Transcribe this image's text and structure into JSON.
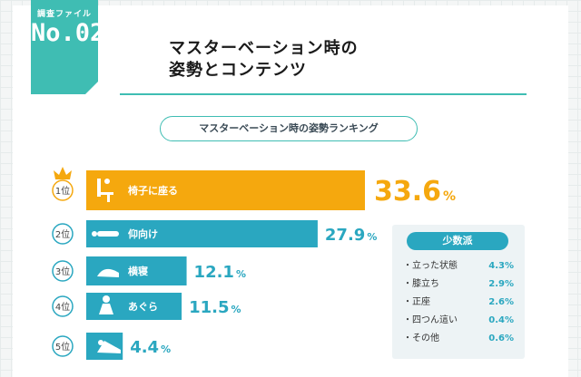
{
  "file": {
    "caption": "調査ファイル",
    "number": "No.02"
  },
  "headline": {
    "line1": "マスターベーション時の",
    "line2": "姿勢とコンテンツ"
  },
  "colors": {
    "teal": "#3fbdb3",
    "bar_top": "#f5a80e",
    "bar": "#2aa7c0"
  },
  "chart_data": {
    "type": "bar",
    "orientation": "horizontal",
    "title": "マスターベーション時の姿勢ランキング",
    "rank_suffix": "位",
    "value_unit": "%",
    "top_marker": "crown-icon",
    "categories": [
      "椅子に座る",
      "仰向け",
      "横寝",
      "あぐら",
      "うつ伏せ"
    ],
    "ranks": [
      "1",
      "2",
      "3",
      "4",
      "5"
    ],
    "values": [
      33.6,
      27.9,
      12.1,
      11.5,
      4.4
    ],
    "value_labels": [
      "33.6",
      "27.9",
      "12.1",
      "11.5",
      "4.4"
    ],
    "icons": [
      "sitting-chair-icon",
      "lying-back-icon",
      "lying-side-icon",
      "cross-legged-icon",
      "lying-face-down-icon"
    ],
    "xlim": [
      0,
      33.6
    ]
  },
  "minority": {
    "title": "少数派",
    "items": [
      {
        "label": "立った状態",
        "value": "4.3%"
      },
      {
        "label": "膝立ち",
        "value": "2.9%"
      },
      {
        "label": "正座",
        "value": "2.6%"
      },
      {
        "label": "四つん這い",
        "value": "0.4%"
      },
      {
        "label": "その他",
        "value": "0.6%"
      }
    ]
  }
}
